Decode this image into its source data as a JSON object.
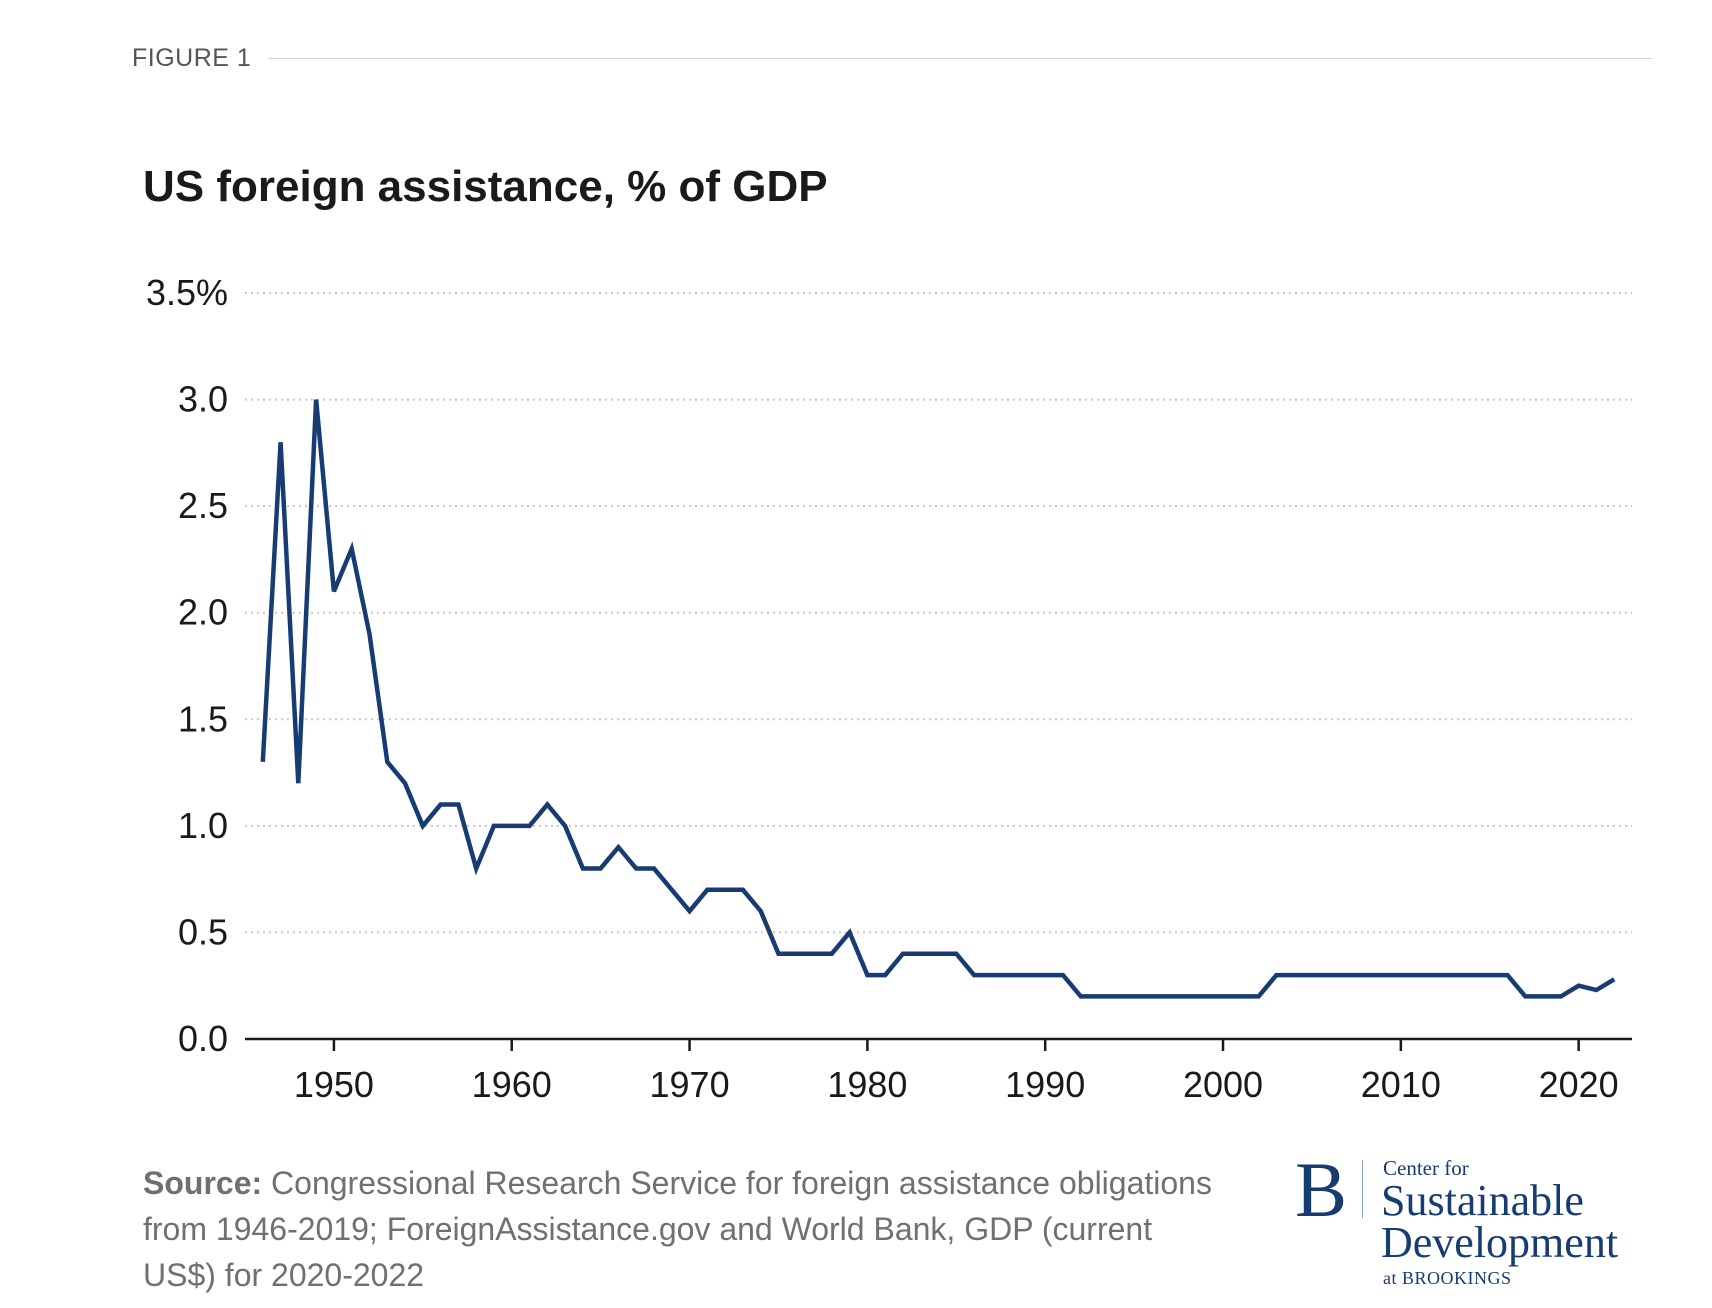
{
  "figure_label": "FIGURE 1",
  "source": {
    "label": "Source:",
    "text": "Congressional Research Service for foreign assistance obligations from 1946-2019; ForeignAssistance.gov and World Bank, GDP (current US$) for 2020-2022"
  },
  "logo": {
    "mark": "B",
    "line1": "Center for",
    "line2": "Sustainable",
    "line3": "Development",
    "line4": "at BROOKINGS"
  },
  "colors": {
    "line": "#173c73",
    "grid": "#c8c8c8",
    "axis": "#1a1a1a",
    "text": "#1a1a1a",
    "muted": "#707070"
  },
  "chart_data": {
    "type": "line",
    "title": "US foreign assistance, % of GDP",
    "xlabel": "",
    "ylabel": "",
    "xlim": [
      1945,
      2023
    ],
    "ylim": [
      0,
      3.5
    ],
    "y_ticks": [
      0,
      0.5,
      1.0,
      1.5,
      2.0,
      2.5,
      3.0,
      3.5
    ],
    "y_tick_labels": [
      "0.0",
      "0.5",
      "1.0",
      "1.5",
      "2.0",
      "2.5",
      "3.0",
      "3.5%"
    ],
    "x_ticks": [
      1950,
      1960,
      1970,
      1980,
      1990,
      2000,
      2010,
      2020
    ],
    "x_tick_labels": [
      "1950",
      "1960",
      "1970",
      "1980",
      "1990",
      "2000",
      "2010",
      "2020"
    ],
    "grid": "horizontal dotted",
    "series": [
      {
        "name": "US foreign assistance, % of GDP",
        "x": [
          1946,
          1947,
          1948,
          1949,
          1950,
          1951,
          1952,
          1953,
          1954,
          1955,
          1956,
          1957,
          1958,
          1959,
          1960,
          1961,
          1962,
          1963,
          1964,
          1965,
          1966,
          1967,
          1968,
          1969,
          1970,
          1971,
          1972,
          1973,
          1974,
          1975,
          1976,
          1977,
          1978,
          1979,
          1980,
          1981,
          1982,
          1983,
          1984,
          1985,
          1986,
          1987,
          1988,
          1989,
          1990,
          1991,
          1992,
          1993,
          1994,
          1995,
          1996,
          1997,
          1998,
          1999,
          2000,
          2001,
          2002,
          2003,
          2004,
          2005,
          2006,
          2007,
          2008,
          2009,
          2010,
          2011,
          2012,
          2013,
          2014,
          2015,
          2016,
          2017,
          2018,
          2019,
          2020,
          2021,
          2022
        ],
        "values": [
          1.3,
          2.8,
          1.2,
          3.0,
          2.1,
          2.3,
          1.9,
          1.3,
          1.2,
          1.0,
          1.1,
          1.1,
          0.8,
          1.0,
          1.0,
          1.0,
          1.1,
          1.0,
          0.8,
          0.8,
          0.9,
          0.8,
          0.8,
          0.7,
          0.6,
          0.7,
          0.7,
          0.7,
          0.6,
          0.4,
          0.4,
          0.4,
          0.4,
          0.5,
          0.3,
          0.3,
          0.4,
          0.4,
          0.4,
          0.4,
          0.3,
          0.3,
          0.3,
          0.3,
          0.3,
          0.3,
          0.2,
          0.2,
          0.2,
          0.2,
          0.2,
          0.2,
          0.2,
          0.2,
          0.2,
          0.2,
          0.2,
          0.3,
          0.3,
          0.3,
          0.3,
          0.3,
          0.3,
          0.3,
          0.3,
          0.3,
          0.3,
          0.3,
          0.3,
          0.3,
          0.3,
          0.2,
          0.2,
          0.2,
          0.25,
          0.23,
          0.28
        ]
      }
    ]
  }
}
